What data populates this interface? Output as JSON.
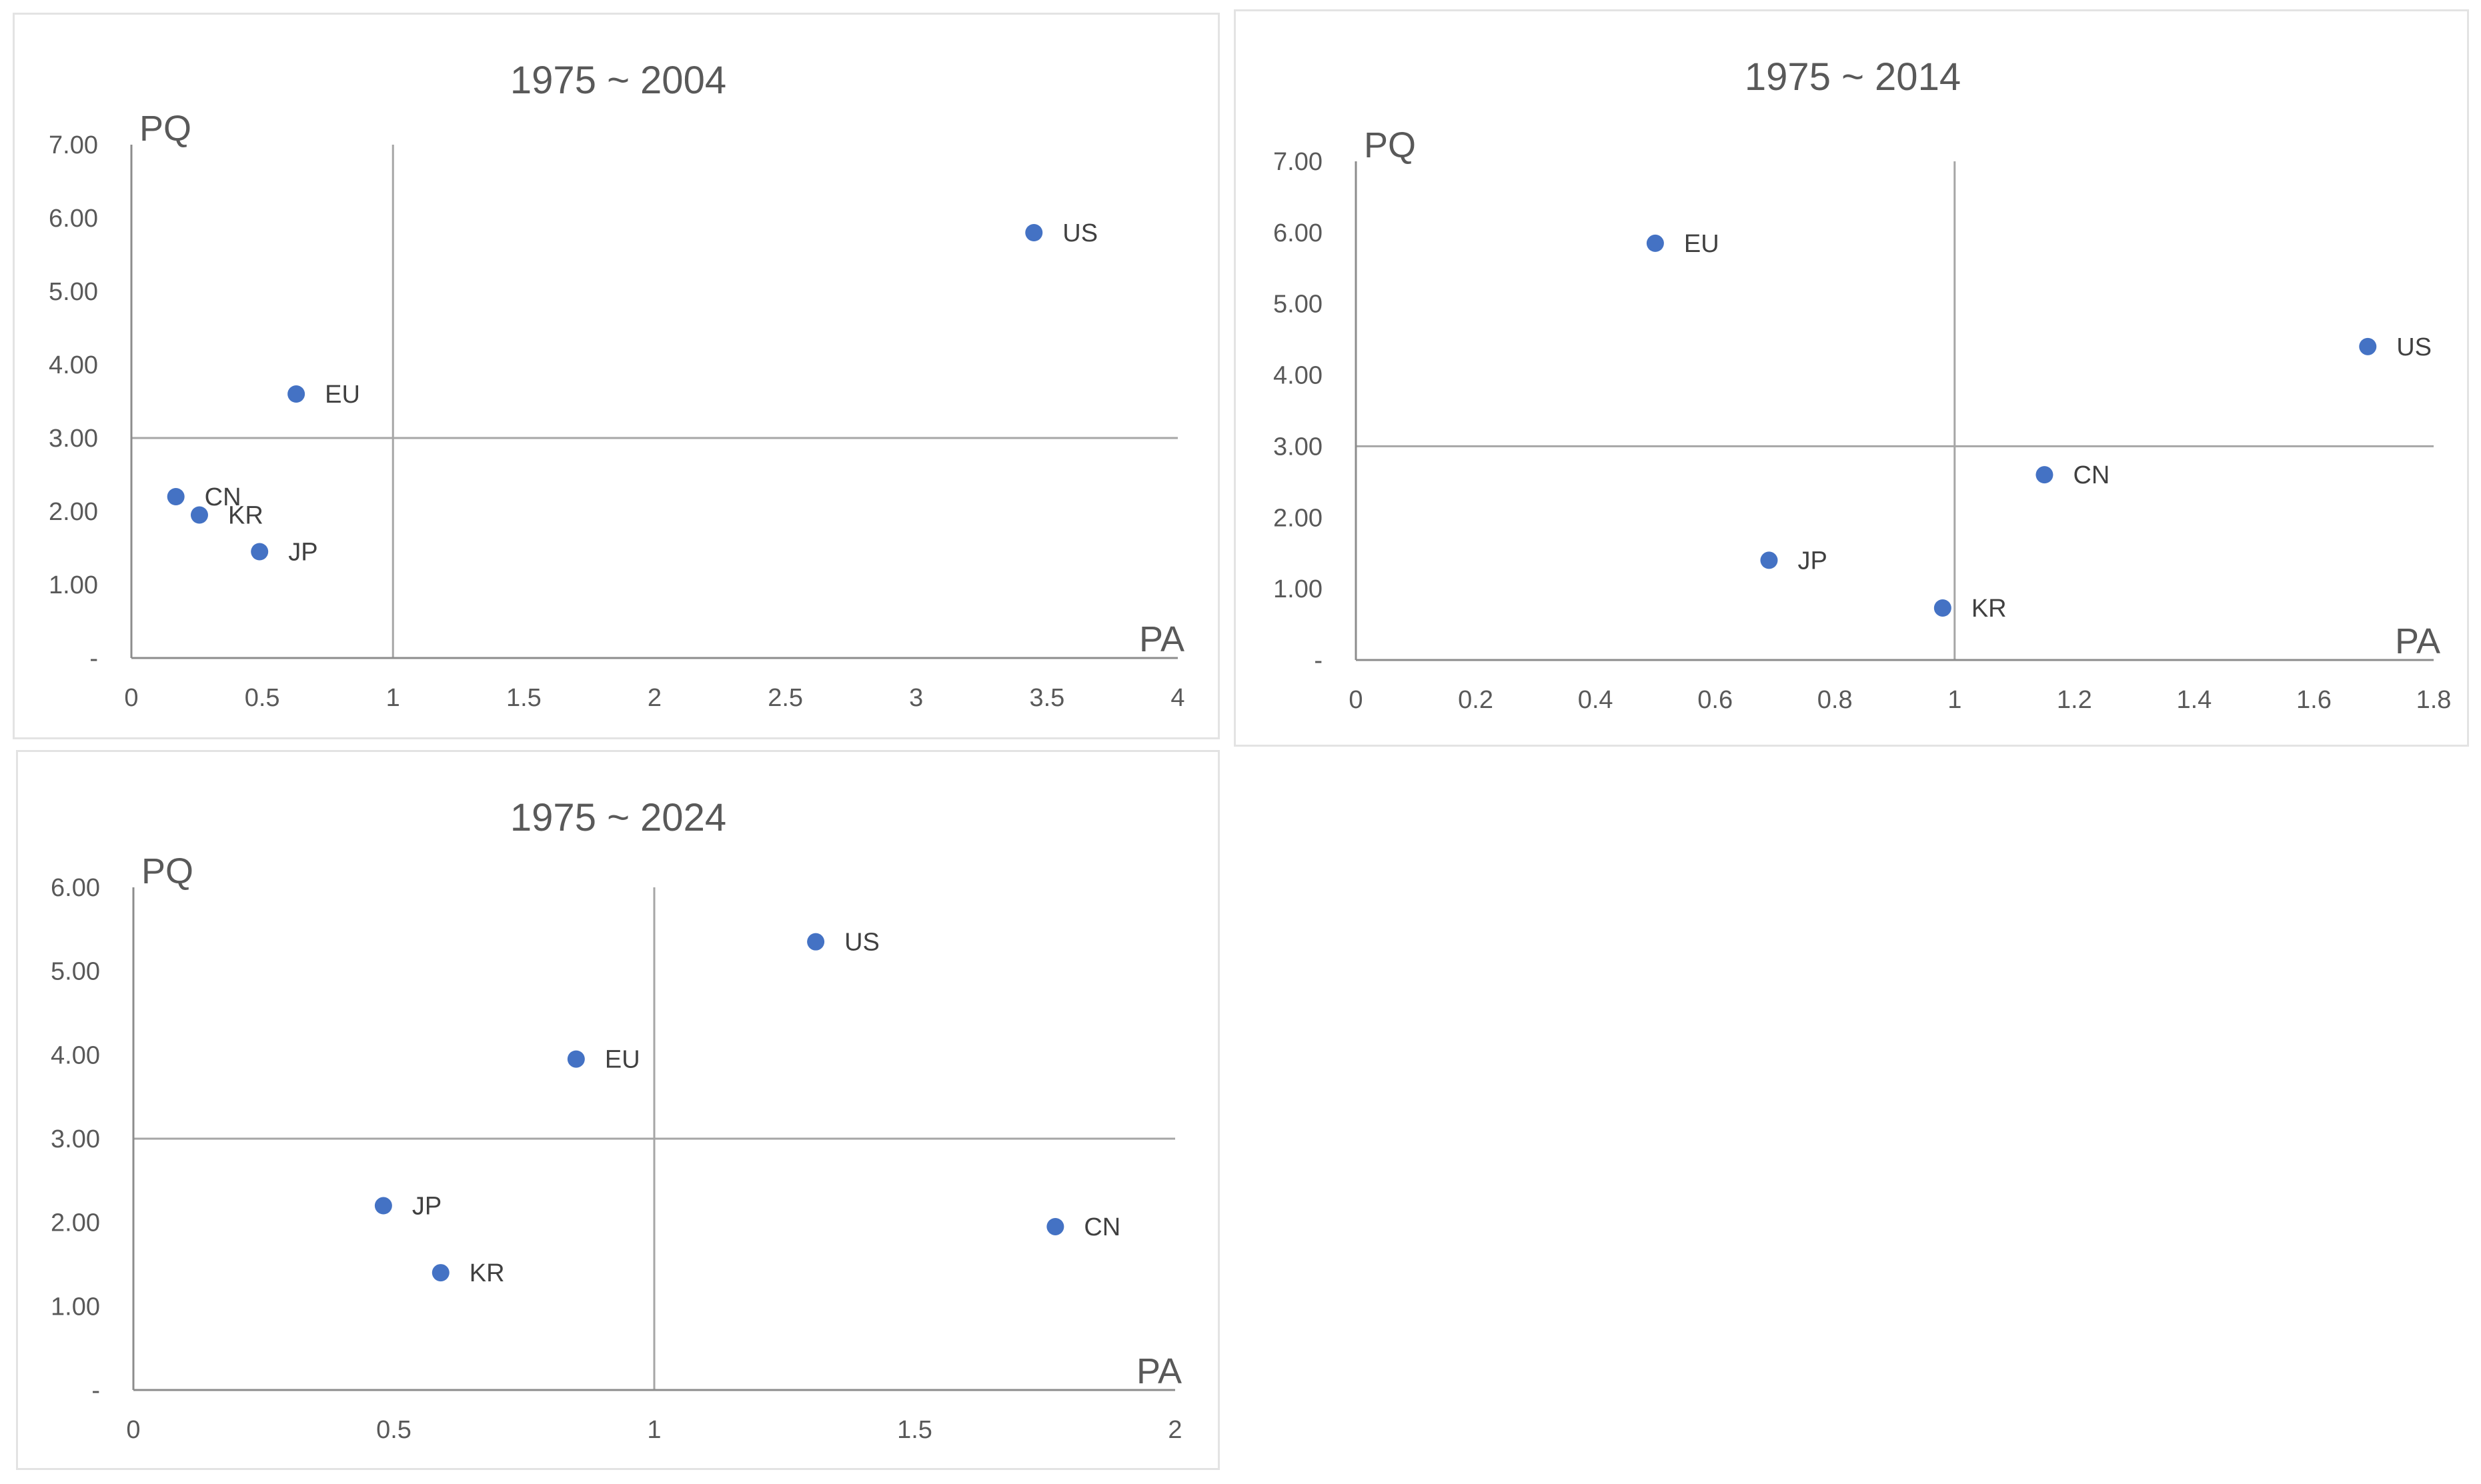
{
  "chart_data": [
    {
      "type": "scatter",
      "title": "1975 ~ 2004",
      "xlabel": "PA",
      "ylabel": "PQ",
      "xlim": [
        0,
        4
      ],
      "ylim": [
        0,
        7
      ],
      "xticks": [
        "0",
        "0.5",
        "1",
        "1.5",
        "2",
        "2.5",
        "3",
        "3.5",
        "4"
      ],
      "yticks": [
        "-",
        "1.00",
        "2.00",
        "3.00",
        "4.00",
        "5.00",
        "6.00",
        "7.00"
      ],
      "reference_lines": {
        "x": 1,
        "y": 3
      },
      "color": "#4472c4",
      "points": [
        {
          "label": "US",
          "x": 3.45,
          "y": 5.8
        },
        {
          "label": "EU",
          "x": 0.63,
          "y": 3.6
        },
        {
          "label": "CN",
          "x": 0.17,
          "y": 2.2
        },
        {
          "label": "KR",
          "x": 0.26,
          "y": 1.95
        },
        {
          "label": "JP",
          "x": 0.49,
          "y": 1.45
        }
      ]
    },
    {
      "type": "scatter",
      "title": "1975 ~ 2014",
      "xlabel": "PA",
      "ylabel": "PQ",
      "xlim": [
        0,
        1.8
      ],
      "ylim": [
        0,
        7
      ],
      "xticks": [
        "0",
        "0.2",
        "0.4",
        "0.6",
        "0.8",
        "1",
        "1.2",
        "1.4",
        "1.6",
        "1.8"
      ],
      "yticks": [
        "-",
        "1.00",
        "2.00",
        "3.00",
        "4.00",
        "5.00",
        "6.00",
        "7.00"
      ],
      "reference_lines": {
        "x": 1,
        "y": 3
      },
      "color": "#4472c4",
      "points": [
        {
          "label": "EU",
          "x": 0.5,
          "y": 5.85
        },
        {
          "label": "US",
          "x": 1.69,
          "y": 4.4
        },
        {
          "label": "CN",
          "x": 1.15,
          "y": 2.6
        },
        {
          "label": "JP",
          "x": 0.69,
          "y": 1.4
        },
        {
          "label": "KR",
          "x": 0.98,
          "y": 0.73
        }
      ]
    },
    {
      "type": "scatter",
      "title": "1975 ~ 2024",
      "xlabel": "PA",
      "ylabel": "PQ",
      "xlim": [
        0,
        2
      ],
      "ylim": [
        0,
        6
      ],
      "xticks": [
        "0",
        "0.5",
        "1",
        "1.5",
        "2"
      ],
      "yticks": [
        "-",
        "1.00",
        "2.00",
        "3.00",
        "4.00",
        "5.00",
        "6.00"
      ],
      "reference_lines": {
        "x": 1,
        "y": 3
      },
      "color": "#4472c4",
      "points": [
        {
          "label": "US",
          "x": 1.31,
          "y": 5.35
        },
        {
          "label": "EU",
          "x": 0.85,
          "y": 3.95
        },
        {
          "label": "JP",
          "x": 0.48,
          "y": 2.2
        },
        {
          "label": "CN",
          "x": 1.77,
          "y": 1.95
        },
        {
          "label": "KR",
          "x": 0.59,
          "y": 1.4
        }
      ]
    }
  ]
}
